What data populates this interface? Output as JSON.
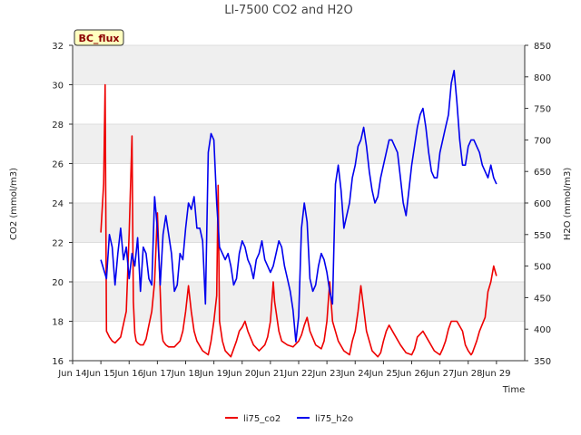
{
  "chart_data": {
    "type": "line",
    "title": "LI-7500 CO2 and H2O",
    "badge": "BC_flux",
    "xlabel": "Time",
    "ylabel_left": "CO2 (mmol/m3)",
    "ylabel_right": "H2O (mmol/m3)",
    "x_ticks": [
      "Jun 14",
      "Jun 15",
      "Jun 16",
      "Jun 17",
      "Jun 18",
      "Jun 19",
      "Jun 20",
      "Jun 21",
      "Jun 22",
      "Jun 23",
      "Jun 24",
      "Jun 25",
      "Jun 26",
      "Jun 27",
      "Jun 28",
      "Jun 29"
    ],
    "x_range": [
      13,
      29
    ],
    "ylim_left": [
      16,
      32
    ],
    "yticks_left": [
      16,
      18,
      20,
      22,
      24,
      26,
      28,
      30,
      32
    ],
    "ylim_right": [
      350,
      850
    ],
    "yticks_right": [
      350,
      400,
      450,
      500,
      550,
      600,
      650,
      700,
      750,
      800,
      850
    ],
    "series": [
      {
        "name": "li75_co2",
        "axis": "left",
        "color": "#ee0000",
        "x": [
          14.0,
          14.1,
          14.15,
          14.2,
          14.3,
          14.4,
          14.5,
          14.7,
          14.9,
          15.0,
          15.1,
          15.15,
          15.2,
          15.25,
          15.3,
          15.4,
          15.5,
          15.6,
          15.7,
          15.8,
          15.9,
          16.0,
          16.1,
          16.15,
          16.2,
          16.3,
          16.4,
          16.6,
          16.8,
          16.9,
          17.0,
          17.1,
          17.2,
          17.3,
          17.4,
          17.6,
          17.8,
          17.9,
          18.0,
          18.1,
          18.15,
          18.2,
          18.3,
          18.4,
          18.6,
          18.8,
          18.9,
          19.0,
          19.1,
          19.2,
          19.4,
          19.6,
          19.8,
          19.9,
          20.0,
          20.1,
          20.15,
          20.3,
          20.4,
          20.6,
          20.8,
          21.0,
          21.1,
          21.2,
          21.3,
          21.4,
          21.6,
          21.8,
          21.9,
          22.0,
          22.1,
          22.2,
          22.4,
          22.6,
          22.8,
          22.9,
          23.0,
          23.1,
          23.2,
          23.4,
          23.6,
          23.8,
          23.9,
          24.0,
          24.1,
          24.2,
          24.4,
          24.6,
          24.8,
          25.0,
          25.1,
          25.2,
          25.4,
          25.6,
          25.8,
          26.0,
          26.1,
          26.2,
          26.3,
          26.4,
          26.6,
          26.8,
          26.9,
          27.0,
          27.1,
          27.15,
          27.2,
          27.3,
          27.4,
          27.6,
          27.7,
          27.8,
          27.9,
          28.0
        ],
        "values": [
          22.5,
          25.0,
          30.0,
          17.5,
          17.2,
          17.0,
          16.9,
          17.2,
          18.5,
          22.5,
          27.4,
          19.0,
          17.4,
          17.0,
          16.9,
          16.8,
          16.8,
          17.1,
          17.8,
          18.5,
          20.0,
          23.5,
          19.5,
          17.5,
          17.0,
          16.8,
          16.7,
          16.7,
          17.0,
          17.5,
          18.5,
          19.8,
          18.5,
          17.5,
          17.0,
          16.5,
          16.3,
          17.0,
          18.0,
          19.3,
          24.9,
          18.0,
          17.0,
          16.5,
          16.2,
          17.0,
          17.5,
          17.7,
          18.0,
          17.5,
          16.8,
          16.5,
          16.8,
          17.2,
          18.0,
          20.0,
          19.0,
          17.5,
          17.0,
          16.8,
          16.7,
          17.0,
          17.3,
          17.8,
          18.2,
          17.5,
          16.8,
          16.6,
          17.0,
          18.0,
          20.0,
          18.0,
          17.0,
          16.5,
          16.3,
          17.0,
          17.5,
          18.5,
          19.8,
          17.5,
          16.5,
          16.2,
          16.4,
          17.0,
          17.5,
          17.8,
          17.3,
          16.8,
          16.4,
          16.3,
          16.6,
          17.2,
          17.5,
          17.0,
          16.5,
          16.3,
          16.6,
          17.0,
          17.6,
          18.0,
          18.0,
          17.5,
          16.8,
          16.5,
          16.3,
          16.4,
          16.6,
          17.0,
          17.5,
          18.2,
          19.5,
          20.0,
          20.8,
          20.3
        ]
      },
      {
        "name": "li75_h2o",
        "axis": "right",
        "color": "#0000ee",
        "x": [
          14.0,
          14.1,
          14.2,
          14.3,
          14.4,
          14.5,
          14.6,
          14.7,
          14.8,
          14.9,
          15.0,
          15.1,
          15.2,
          15.3,
          15.4,
          15.5,
          15.6,
          15.7,
          15.8,
          15.9,
          16.0,
          16.1,
          16.2,
          16.3,
          16.4,
          16.5,
          16.6,
          16.7,
          16.8,
          16.9,
          17.0,
          17.1,
          17.2,
          17.3,
          17.4,
          17.5,
          17.6,
          17.7,
          17.8,
          17.9,
          18.0,
          18.1,
          18.2,
          18.3,
          18.4,
          18.5,
          18.6,
          18.7,
          18.8,
          18.9,
          19.0,
          19.1,
          19.2,
          19.3,
          19.4,
          19.5,
          19.6,
          19.7,
          19.8,
          19.9,
          20.0,
          20.1,
          20.2,
          20.3,
          20.4,
          20.5,
          20.6,
          20.7,
          20.8,
          20.9,
          21.0,
          21.1,
          21.2,
          21.3,
          21.4,
          21.5,
          21.6,
          21.7,
          21.8,
          21.9,
          22.0,
          22.1,
          22.2,
          22.3,
          22.4,
          22.5,
          22.6,
          22.7,
          22.8,
          22.9,
          23.0,
          23.1,
          23.2,
          23.3,
          23.4,
          23.5,
          23.6,
          23.7,
          23.8,
          23.9,
          24.0,
          24.1,
          24.2,
          24.3,
          24.4,
          24.5,
          24.6,
          24.7,
          24.8,
          24.9,
          25.0,
          25.1,
          25.2,
          25.3,
          25.4,
          25.5,
          25.6,
          25.7,
          25.8,
          25.9,
          26.0,
          26.1,
          26.2,
          26.3,
          26.4,
          26.5,
          26.6,
          26.7,
          26.8,
          26.9,
          27.0,
          27.1,
          27.2,
          27.3,
          27.4,
          27.5,
          27.6,
          27.7,
          27.8,
          27.9,
          28.0
        ],
        "values": [
          510,
          495,
          480,
          550,
          530,
          470,
          520,
          560,
          510,
          530,
          480,
          520,
          500,
          545,
          460,
          530,
          520,
          480,
          470,
          610,
          560,
          470,
          550,
          580,
          550,
          520,
          460,
          470,
          520,
          510,
          560,
          600,
          590,
          610,
          560,
          560,
          540,
          440,
          680,
          710,
          700,
          600,
          530,
          520,
          510,
          520,
          500,
          470,
          480,
          520,
          540,
          530,
          510,
          500,
          480,
          510,
          520,
          540,
          510,
          500,
          490,
          500,
          520,
          540,
          530,
          500,
          480,
          460,
          430,
          380,
          420,
          560,
          600,
          570,
          480,
          460,
          470,
          500,
          520,
          510,
          490,
          460,
          440,
          630,
          660,
          620,
          560,
          580,
          600,
          640,
          660,
          690,
          700,
          720,
          690,
          650,
          620,
          600,
          610,
          640,
          660,
          680,
          700,
          700,
          690,
          680,
          640,
          600,
          580,
          620,
          660,
          690,
          720,
          740,
          750,
          720,
          680,
          650,
          640,
          640,
          680,
          700,
          720,
          740,
          790,
          810,
          760,
          700,
          660,
          660,
          690,
          700,
          700,
          690,
          680,
          660,
          650,
          640,
          660,
          640,
          630
        ]
      }
    ],
    "legend": [
      "li75_co2",
      "li75_h2o"
    ]
  }
}
